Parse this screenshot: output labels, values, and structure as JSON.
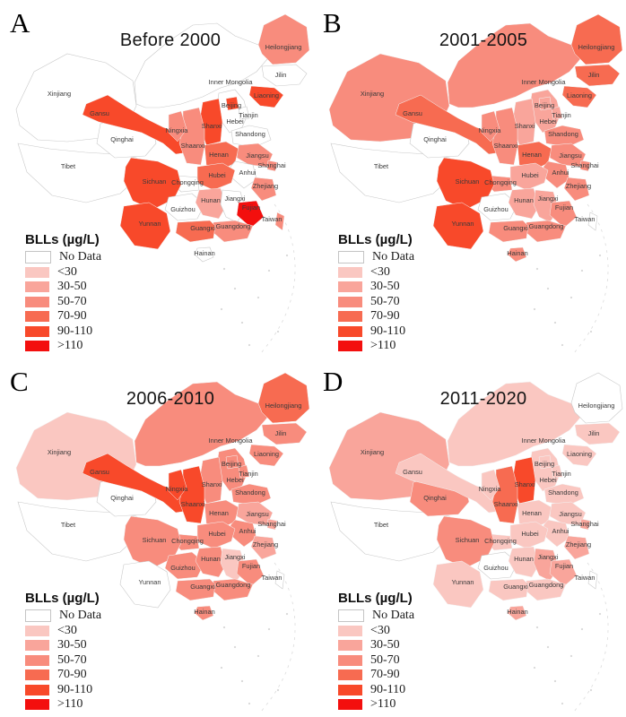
{
  "legend": {
    "title": "BLLs (µg/L)",
    "items": [
      {
        "label": "No Data",
        "color": "#ffffff"
      },
      {
        "label": "<30",
        "color": "#fac7c1"
      },
      {
        "label": "30-50",
        "color": "#f9a59b"
      },
      {
        "label": "50-70",
        "color": "#f88c7d"
      },
      {
        "label": "70-90",
        "color": "#f76b51"
      },
      {
        "label": "90-110",
        "color": "#f8492a"
      },
      {
        "label": ">110",
        "color": "#f30f0e"
      }
    ]
  },
  "panels": [
    {
      "letter": "A",
      "title": "Before 2000"
    },
    {
      "letter": "B",
      "title": "2001-2005"
    },
    {
      "letter": "C",
      "title": "2006-2010"
    },
    {
      "letter": "D",
      "title": "2011-2020"
    }
  ],
  "chart_data": {
    "type": "heatmap",
    "subtype": "choropleth-map",
    "title": "Blood lead levels (BLLs, µg/L) by Chinese province across four periods",
    "unit": "µg/L",
    "categories": [
      "No Data",
      "<30",
      "30-50",
      "50-70",
      "70-90",
      "90-110",
      ">110"
    ],
    "periods": [
      "Before 2000",
      "2001-2005",
      "2006-2010",
      "2011-2020"
    ],
    "province_values": {
      "Heilongjiang": [
        "50-70",
        "70-90",
        "70-90",
        "No Data"
      ],
      "Jilin": [
        "No Data",
        "70-90",
        "50-70",
        "<30"
      ],
      "Liaoning": [
        "90-110",
        "70-90",
        "50-70",
        "<30"
      ],
      "Inner Mongolia": [
        "No Data",
        "50-70",
        "50-70",
        "<30"
      ],
      "Xinjiang": [
        "No Data",
        "50-70",
        "<30",
        "30-50"
      ],
      "Tibet": [
        "No Data",
        "No Data",
        "No Data",
        "No Data"
      ],
      "Qinghai": [
        "No Data",
        "No Data",
        "No Data",
        "50-70"
      ],
      "Gansu": [
        "90-110",
        "70-90",
        "90-110",
        "<30"
      ],
      "Ningxia": [
        "50-70",
        "50-70",
        "90-110",
        "<30"
      ],
      "Shaanxi": [
        "50-70",
        "50-70",
        "90-110",
        "70-90"
      ],
      "Shanxi": [
        "90-110",
        "30-50",
        "50-70",
        "90-110"
      ],
      "Beijing": [
        "90-110",
        "30-50",
        "50-70",
        "<30"
      ],
      "Tianjin": [
        "No Data",
        "30-50",
        "50-70",
        "<30"
      ],
      "Hebei": [
        "No Data",
        "30-50",
        "50-70",
        "<30"
      ],
      "Shandong": [
        "No Data",
        "50-70",
        "50-70",
        "<30"
      ],
      "Henan": [
        "70-90",
        "70-90",
        "50-70",
        "<30"
      ],
      "Jiangsu": [
        "50-70",
        "50-70",
        "30-50",
        "<30"
      ],
      "Shanghai": [
        "50-70",
        "50-70",
        "30-50",
        "30-50"
      ],
      "Anhui": [
        "No Data",
        "50-70",
        "50-70",
        "<30"
      ],
      "Hubei": [
        "70-90",
        "30-50",
        "50-70",
        "<30"
      ],
      "Chongqing": [
        "No Data",
        "50-70",
        "50-70",
        "<30"
      ],
      "Sichuan": [
        "90-110",
        "90-110",
        "50-70",
        "50-70"
      ],
      "Guizhou": [
        "No Data",
        "No Data",
        "50-70",
        "No Data"
      ],
      "Yunnan": [
        "90-110",
        "90-110",
        "No Data",
        "<30"
      ],
      "Hunan": [
        "30-50",
        "30-50",
        "50-70",
        "<30"
      ],
      "Jiangxi": [
        "No Data",
        "30-50",
        "<30",
        "30-50"
      ],
      "Zhejiang": [
        "50-70",
        "50-70",
        "30-50",
        "30-50"
      ],
      "Fujian": [
        ">110",
        "50-70",
        "50-70",
        "30-50"
      ],
      "Taiwan": [
        "50-70",
        "No Data",
        "No Data",
        "No Data"
      ],
      "Guangdong": [
        "50-70",
        "50-70",
        "50-70",
        "<30"
      ],
      "Guangxi": [
        "70-90",
        "50-70",
        "50-70",
        "<30"
      ],
      "Hainan": [
        "No Data",
        "50-70",
        "50-70",
        "30-50"
      ]
    }
  }
}
